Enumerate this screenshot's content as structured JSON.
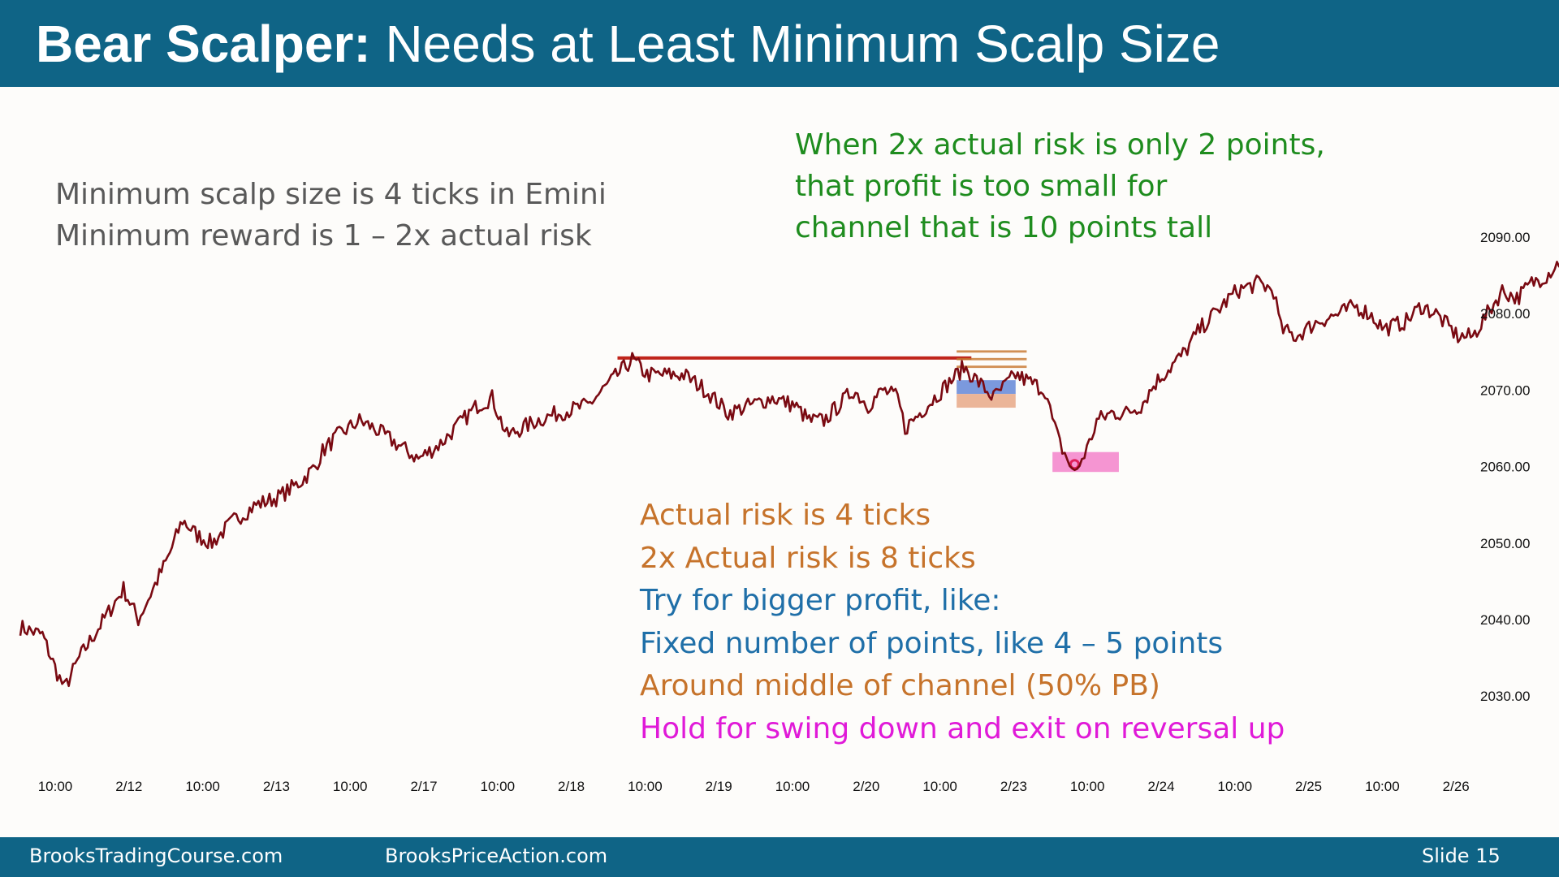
{
  "header": {
    "title_bold": "Bear Scalper:",
    "title_rest": " Needs at Least Minimum Scalp Size",
    "background": "#0f6486"
  },
  "notes": {
    "left": [
      "Minimum scalp size is 4 ticks in Emini",
      "Minimum reward is 1 – 2x actual risk"
    ],
    "top": [
      "When 2x actual risk is only 2 points,",
      "that profit is too small for",
      "channel that is 10 points tall"
    ],
    "bottom": [
      {
        "text": "Actual risk is 4 ticks",
        "color": "#c6732b"
      },
      {
        "text": "2x Actual risk is 8 ticks",
        "color": "#c6732b"
      },
      {
        "text": "Try for bigger profit, like:",
        "color": "#1f6fa8"
      },
      {
        "text": "Fixed number of points, like 4 – 5 points",
        "color": "#1f6fa8"
      },
      {
        "text": "Around middle of channel (50% PB)",
        "color": "#c6732b"
      },
      {
        "text": "Hold for swing down and exit on reversal up",
        "color": "#e01ad8"
      }
    ]
  },
  "footer": {
    "site1": "BrooksTradingCourse.com",
    "site2": "BrooksPriceAction.com",
    "slide": "Slide  15"
  },
  "chart_data": {
    "type": "line",
    "y_ticks": [
      {
        "value": 2030,
        "label": "2030.00"
      },
      {
        "value": 2040,
        "label": "2040.00"
      },
      {
        "value": 2050,
        "label": "2050.00"
      },
      {
        "value": 2060,
        "label": "2060.00"
      },
      {
        "value": 2070,
        "label": "2070.00"
      },
      {
        "value": 2080,
        "label": "2080.00"
      },
      {
        "value": 2090,
        "label": "2090.00"
      }
    ],
    "x_ticks": [
      "10:00",
      "2/12",
      "10:00",
      "2/13",
      "10:00",
      "2/17",
      "10:00",
      "2/18",
      "10:00",
      "2/19",
      "10:00",
      "2/20",
      "10:00",
      "2/23",
      "10:00",
      "2/24",
      "10:00",
      "2/25",
      "10:00",
      "2/26"
    ],
    "ylim": [
      2025,
      2100
    ],
    "series_color": "#7a0a12",
    "price_path": [
      [
        0,
        2039
      ],
      [
        0.3,
        2038
      ],
      [
        0.5,
        2033
      ],
      [
        0.6,
        2031
      ],
      [
        0.8,
        2035
      ],
      [
        1.0,
        2038
      ],
      [
        1.2,
        2041
      ],
      [
        1.4,
        2044
      ],
      [
        1.6,
        2040
      ],
      [
        1.7,
        2042
      ],
      [
        1.8,
        2044
      ],
      [
        2.0,
        2048
      ],
      [
        2.2,
        2053
      ],
      [
        2.4,
        2051
      ],
      [
        2.6,
        2050
      ],
      [
        2.9,
        2053
      ],
      [
        3.2,
        2055
      ],
      [
        3.5,
        2056
      ],
      [
        3.8,
        2058
      ],
      [
        4.0,
        2060
      ],
      [
        4.1,
        2062
      ],
      [
        4.3,
        2064
      ],
      [
        4.6,
        2066
      ],
      [
        4.8,
        2065
      ],
      [
        5.1,
        2063
      ],
      [
        5.4,
        2061
      ],
      [
        5.7,
        2063
      ],
      [
        6.0,
        2066
      ],
      [
        6.2,
        2068
      ],
      [
        6.4,
        2069
      ],
      [
        6.6,
        2064
      ],
      [
        6.8,
        2065
      ],
      [
        7.0,
        2066
      ],
      [
        7.3,
        2067
      ],
      [
        7.7,
        2068
      ],
      [
        7.9,
        2070
      ],
      [
        8.1,
        2072
      ],
      [
        8.3,
        2074
      ],
      [
        8.5,
        2072
      ],
      [
        8.8,
        2072
      ],
      [
        9.0,
        2072
      ],
      [
        9.3,
        2070
      ],
      [
        9.6,
        2067
      ],
      [
        9.9,
        2068
      ],
      [
        10.2,
        2069
      ],
      [
        10.5,
        2068
      ],
      [
        10.7,
        2066
      ],
      [
        10.9,
        2066
      ],
      [
        11.1,
        2068
      ],
      [
        11.3,
        2070
      ],
      [
        11.5,
        2068
      ],
      [
        11.7,
        2070
      ],
      [
        11.9,
        2069
      ],
      [
        12.0,
        2065
      ],
      [
        12.2,
        2067
      ],
      [
        12.4,
        2069
      ],
      [
        12.6,
        2071
      ],
      [
        12.8,
        2073
      ],
      [
        13.0,
        2071
      ],
      [
        13.2,
        2069
      ],
      [
        13.3,
        2070
      ],
      [
        13.5,
        2072
      ],
      [
        13.7,
        2071
      ],
      [
        13.9,
        2070
      ],
      [
        14.0,
        2066
      ],
      [
        14.1,
        2063
      ],
      [
        14.2,
        2061
      ],
      [
        14.3,
        2059
      ],
      [
        14.4,
        2061
      ],
      [
        14.5,
        2063
      ],
      [
        14.6,
        2066
      ],
      [
        14.8,
        2067
      ],
      [
        15.0,
        2067
      ],
      [
        15.2,
        2068
      ],
      [
        15.4,
        2071
      ],
      [
        15.6,
        2073
      ],
      [
        15.8,
        2075
      ],
      [
        16.0,
        2078
      ],
      [
        16.3,
        2081
      ],
      [
        16.5,
        2083
      ],
      [
        16.8,
        2084
      ],
      [
        17.0,
        2083
      ],
      [
        17.1,
        2078
      ],
      [
        17.3,
        2077
      ],
      [
        17.6,
        2079
      ],
      [
        17.9,
        2080
      ],
      [
        18.1,
        2081
      ],
      [
        18.3,
        2080
      ],
      [
        18.5,
        2078
      ],
      [
        18.8,
        2079
      ],
      [
        19.0,
        2081
      ],
      [
        19.2,
        2080
      ],
      [
        19.5,
        2077
      ],
      [
        19.7,
        2077
      ],
      [
        19.9,
        2080
      ],
      [
        20.1,
        2083
      ],
      [
        20.3,
        2082
      ],
      [
        20.5,
        2084
      ],
      [
        20.7,
        2085
      ],
      [
        20.9,
        2087
      ],
      [
        21.1,
        2090
      ],
      [
        21.3,
        2088
      ],
      [
        21.5,
        2086
      ],
      [
        21.7,
        2085
      ],
      [
        21.9,
        2087
      ],
      [
        22.1,
        2088
      ],
      [
        22.3,
        2088
      ],
      [
        22.6,
        2090
      ],
      [
        22.8,
        2088
      ],
      [
        23.0,
        2086
      ],
      [
        23.2,
        2086
      ],
      [
        23.4,
        2087
      ],
      [
        23.6,
        2088
      ],
      [
        23.9,
        2089
      ],
      [
        24.2,
        2090
      ],
      [
        24.5,
        2092
      ],
      [
        24.7,
        2091
      ],
      [
        24.9,
        2088
      ],
      [
        25.0,
        2084
      ],
      [
        25.2,
        2087
      ],
      [
        25.4,
        2086
      ],
      [
        25.6,
        2087
      ]
    ],
    "annotations": [
      {
        "type": "line",
        "from": [
          8.1,
          2074.2
        ],
        "to": [
          12.9,
          2074.2
        ],
        "color": "#c0251b"
      },
      {
        "type": "rect",
        "x": [
          12.7,
          13.65
        ],
        "y": [
          2072.9,
          2073.2
        ],
        "color": "#c6732b"
      },
      {
        "type": "rect",
        "x": [
          12.7,
          13.65
        ],
        "y": [
          2073.9,
          2074.2
        ],
        "color": "#c6732b"
      },
      {
        "type": "rect",
        "x": [
          12.7,
          13.65
        ],
        "y": [
          2074.9,
          2075.2
        ],
        "color": "#c6732b"
      },
      {
        "type": "rect",
        "x": [
          12.7,
          13.5
        ],
        "y": [
          2069.5,
          2071.3
        ],
        "color": "#5a7fd6"
      },
      {
        "type": "rect",
        "x": [
          12.7,
          13.5
        ],
        "y": [
          2067.7,
          2069.5
        ],
        "color": "#e6a27f"
      },
      {
        "type": "rect",
        "x": [
          14.0,
          14.9
        ],
        "y": [
          2059.3,
          2061.9
        ],
        "color": "#f27ac8"
      },
      {
        "type": "dot",
        "x": 14.3,
        "y": 2060.3,
        "color": "#e0205a"
      }
    ]
  }
}
